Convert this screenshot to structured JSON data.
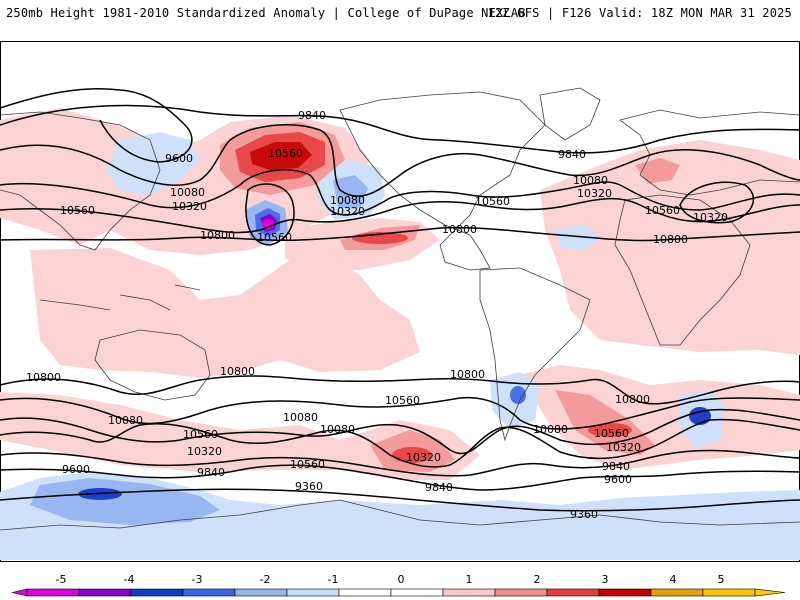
{
  "header": {
    "left": "250mb Height 1981-2010 Standardized Anomaly | College of DuPage NEXLAB",
    "right": "12Z GFS | F126 Valid: 18Z MON MAR 31 2025"
  },
  "contour_labels": [
    {
      "id": "l1",
      "text": "9840"
    },
    {
      "id": "l2",
      "text": "9600"
    },
    {
      "id": "l3",
      "text": "10560"
    },
    {
      "id": "l4",
      "text": "10080"
    },
    {
      "id": "l5",
      "text": "10320"
    },
    {
      "id": "l6",
      "text": "10560"
    },
    {
      "id": "l7",
      "text": "10800"
    },
    {
      "id": "l8",
      "text": "10560"
    },
    {
      "id": "l9",
      "text": "10080"
    },
    {
      "id": "l10",
      "text": "10320"
    },
    {
      "id": "l11",
      "text": "9840"
    },
    {
      "id": "l12",
      "text": "10080"
    },
    {
      "id": "l13",
      "text": "10320"
    },
    {
      "id": "l14",
      "text": "10560"
    },
    {
      "id": "l15",
      "text": "10800"
    },
    {
      "id": "l16",
      "text": "10560"
    },
    {
      "id": "l17",
      "text": "10320"
    },
    {
      "id": "l18",
      "text": "10800"
    },
    {
      "id": "l19",
      "text": "10800"
    },
    {
      "id": "l20",
      "text": "10800"
    },
    {
      "id": "l21",
      "text": "10800"
    },
    {
      "id": "l22",
      "text": "10560"
    },
    {
      "id": "l23",
      "text": "10080"
    },
    {
      "id": "l24",
      "text": "10800"
    },
    {
      "id": "l25",
      "text": "10080"
    },
    {
      "id": "l26",
      "text": "10560"
    },
    {
      "id": "l27",
      "text": "10320"
    },
    {
      "id": "l28",
      "text": "9840"
    },
    {
      "id": "l29",
      "text": "9600"
    },
    {
      "id": "l30",
      "text": "10080"
    },
    {
      "id": "l31",
      "text": "10320"
    },
    {
      "id": "l32",
      "text": "9840"
    },
    {
      "id": "l33",
      "text": "9360"
    },
    {
      "id": "l34",
      "text": "10080"
    },
    {
      "id": "l35",
      "text": "10560"
    },
    {
      "id": "l36",
      "text": "10320"
    },
    {
      "id": "l37",
      "text": "9840"
    },
    {
      "id": "l38",
      "text": "9600"
    },
    {
      "id": "l39",
      "text": "9360"
    },
    {
      "id": "l40",
      "text": "10560"
    }
  ],
  "colorbar": {
    "ticks": [
      "-5",
      "-4",
      "-3",
      "-2",
      "-1",
      "0",
      "1",
      "2",
      "3",
      "4",
      "5"
    ],
    "colors": [
      "#e000e0",
      "#8a00c8",
      "#0a3cc8",
      "#3c64e6",
      "#96b4f0",
      "#c8dcfa",
      "#ffffff",
      "#ffffff",
      "#fac8c8",
      "#f08c8c",
      "#e63c3c",
      "#c80000",
      "#e6a000",
      "#ffc800"
    ]
  },
  "palette": {
    "pos1": "#fbd3d3",
    "pos2": "#f39a9a",
    "pos3": "#e84848",
    "pos4": "#c80a0a",
    "neg1": "#cfe0fa",
    "neg2": "#98b6f2",
    "neg3": "#4a6fe8",
    "neg4": "#1e3fc8",
    "neg5": "#8a00c8",
    "neg6": "#e000e0",
    "contour": "#000000",
    "coast": "#404040"
  }
}
